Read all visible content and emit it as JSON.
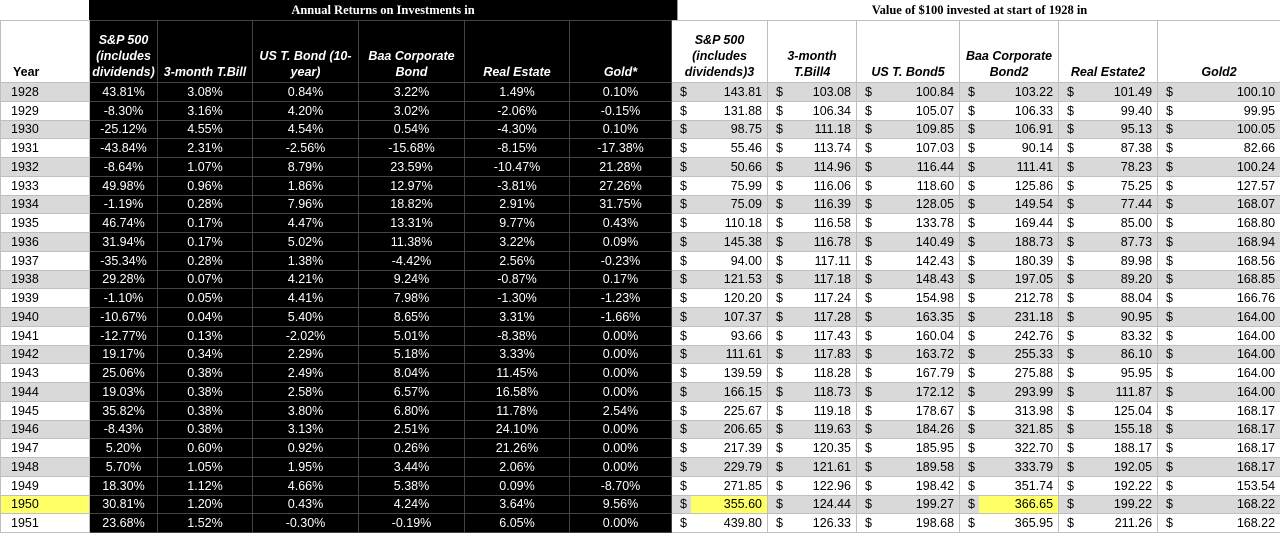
{
  "headers": {
    "left_title": "Annual Returns on Investments in",
    "right_title": "Value of $100 invested at start of 1928 in",
    "year": "Year",
    "returns_cols": [
      "S&P 500 (includes dividends)",
      "3-month T.Bill",
      "US T. Bond (10-year)",
      "Baa Corporate Bond",
      "Real Estate",
      "Gold*"
    ],
    "value_cols": [
      "S&P 500 (includes dividends)3",
      "3-month T.Bill4",
      "US T. Bond5",
      "Baa Corporate Bond2",
      "Real Estate2",
      "Gold2"
    ]
  },
  "currency_symbol": "$",
  "highlight_color": "#ffff66",
  "rows": [
    {
      "year": "1928",
      "r": [
        "43.81%",
        "3.08%",
        "0.84%",
        "3.22%",
        "1.49%",
        "0.10%"
      ],
      "v": [
        "143.81",
        "103.08",
        "100.84",
        "103.22",
        "101.49",
        "100.10"
      ]
    },
    {
      "year": "1929",
      "r": [
        "-8.30%",
        "3.16%",
        "4.20%",
        "3.02%",
        "-2.06%",
        "-0.15%"
      ],
      "v": [
        "131.88",
        "106.34",
        "105.07",
        "106.33",
        "99.40",
        "99.95"
      ]
    },
    {
      "year": "1930",
      "r": [
        "-25.12%",
        "4.55%",
        "4.54%",
        "0.54%",
        "-4.30%",
        "0.10%"
      ],
      "v": [
        "98.75",
        "111.18",
        "109.85",
        "106.91",
        "95.13",
        "100.05"
      ]
    },
    {
      "year": "1931",
      "r": [
        "-43.84%",
        "2.31%",
        "-2.56%",
        "-15.68%",
        "-8.15%",
        "-17.38%"
      ],
      "v": [
        "55.46",
        "113.74",
        "107.03",
        "90.14",
        "87.38",
        "82.66"
      ]
    },
    {
      "year": "1932",
      "r": [
        "-8.64%",
        "1.07%",
        "8.79%",
        "23.59%",
        "-10.47%",
        "21.28%"
      ],
      "v": [
        "50.66",
        "114.96",
        "116.44",
        "111.41",
        "78.23",
        "100.24"
      ]
    },
    {
      "year": "1933",
      "r": [
        "49.98%",
        "0.96%",
        "1.86%",
        "12.97%",
        "-3.81%",
        "27.26%"
      ],
      "v": [
        "75.99",
        "116.06",
        "118.60",
        "125.86",
        "75.25",
        "127.57"
      ]
    },
    {
      "year": "1934",
      "r": [
        "-1.19%",
        "0.28%",
        "7.96%",
        "18.82%",
        "2.91%",
        "31.75%"
      ],
      "v": [
        "75.09",
        "116.39",
        "128.05",
        "149.54",
        "77.44",
        "168.07"
      ]
    },
    {
      "year": "1935",
      "r": [
        "46.74%",
        "0.17%",
        "4.47%",
        "13.31%",
        "9.77%",
        "0.43%"
      ],
      "v": [
        "110.18",
        "116.58",
        "133.78",
        "169.44",
        "85.00",
        "168.80"
      ]
    },
    {
      "year": "1936",
      "r": [
        "31.94%",
        "0.17%",
        "5.02%",
        "11.38%",
        "3.22%",
        "0.09%"
      ],
      "v": [
        "145.38",
        "116.78",
        "140.49",
        "188.73",
        "87.73",
        "168.94"
      ]
    },
    {
      "year": "1937",
      "r": [
        "-35.34%",
        "0.28%",
        "1.38%",
        "-4.42%",
        "2.56%",
        "-0.23%"
      ],
      "v": [
        "94.00",
        "117.11",
        "142.43",
        "180.39",
        "89.98",
        "168.56"
      ]
    },
    {
      "year": "1938",
      "r": [
        "29.28%",
        "0.07%",
        "4.21%",
        "9.24%",
        "-0.87%",
        "0.17%"
      ],
      "v": [
        "121.53",
        "117.18",
        "148.43",
        "197.05",
        "89.20",
        "168.85"
      ]
    },
    {
      "year": "1939",
      "r": [
        "-1.10%",
        "0.05%",
        "4.41%",
        "7.98%",
        "-1.30%",
        "-1.23%"
      ],
      "v": [
        "120.20",
        "117.24",
        "154.98",
        "212.78",
        "88.04",
        "166.76"
      ]
    },
    {
      "year": "1940",
      "r": [
        "-10.67%",
        "0.04%",
        "5.40%",
        "8.65%",
        "3.31%",
        "-1.66%"
      ],
      "v": [
        "107.37",
        "117.28",
        "163.35",
        "231.18",
        "90.95",
        "164.00"
      ]
    },
    {
      "year": "1941",
      "r": [
        "-12.77%",
        "0.13%",
        "-2.02%",
        "5.01%",
        "-8.38%",
        "0.00%"
      ],
      "v": [
        "93.66",
        "117.43",
        "160.04",
        "242.76",
        "83.32",
        "164.00"
      ]
    },
    {
      "year": "1942",
      "r": [
        "19.17%",
        "0.34%",
        "2.29%",
        "5.18%",
        "3.33%",
        "0.00%"
      ],
      "v": [
        "111.61",
        "117.83",
        "163.72",
        "255.33",
        "86.10",
        "164.00"
      ]
    },
    {
      "year": "1943",
      "r": [
        "25.06%",
        "0.38%",
        "2.49%",
        "8.04%",
        "11.45%",
        "0.00%"
      ],
      "v": [
        "139.59",
        "118.28",
        "167.79",
        "275.88",
        "95.95",
        "164.00"
      ]
    },
    {
      "year": "1944",
      "r": [
        "19.03%",
        "0.38%",
        "2.58%",
        "6.57%",
        "16.58%",
        "0.00%"
      ],
      "v": [
        "166.15",
        "118.73",
        "172.12",
        "293.99",
        "111.87",
        "164.00"
      ]
    },
    {
      "year": "1945",
      "r": [
        "35.82%",
        "0.38%",
        "3.80%",
        "6.80%",
        "11.78%",
        "2.54%"
      ],
      "v": [
        "225.67",
        "119.18",
        "178.67",
        "313.98",
        "125.04",
        "168.17"
      ]
    },
    {
      "year": "1946",
      "r": [
        "-8.43%",
        "0.38%",
        "3.13%",
        "2.51%",
        "24.10%",
        "0.00%"
      ],
      "v": [
        "206.65",
        "119.63",
        "184.26",
        "321.85",
        "155.18",
        "168.17"
      ]
    },
    {
      "year": "1947",
      "r": [
        "5.20%",
        "0.60%",
        "0.92%",
        "0.26%",
        "21.26%",
        "0.00%"
      ],
      "v": [
        "217.39",
        "120.35",
        "185.95",
        "322.70",
        "188.17",
        "168.17"
      ]
    },
    {
      "year": "1948",
      "r": [
        "5.70%",
        "1.05%",
        "1.95%",
        "3.44%",
        "2.06%",
        "0.00%"
      ],
      "v": [
        "229.79",
        "121.61",
        "189.58",
        "333.79",
        "192.05",
        "168.17"
      ]
    },
    {
      "year": "1949",
      "r": [
        "18.30%",
        "1.12%",
        "4.66%",
        "5.38%",
        "0.09%",
        "-8.70%"
      ],
      "v": [
        "271.85",
        "122.96",
        "198.42",
        "351.74",
        "192.22",
        "153.54"
      ]
    },
    {
      "year": "1950",
      "r": [
        "30.81%",
        "1.20%",
        "0.43%",
        "4.24%",
        "3.64%",
        "9.56%"
      ],
      "v": [
        "355.60",
        "124.44",
        "199.27",
        "366.65",
        "199.22",
        "168.22"
      ],
      "hl_year": true,
      "hl_v": [
        0,
        3
      ]
    },
    {
      "year": "1951",
      "r": [
        "23.68%",
        "1.52%",
        "-0.30%",
        "-0.19%",
        "6.05%",
        "0.00%"
      ],
      "v": [
        "439.80",
        "126.33",
        "198.68",
        "365.95",
        "211.26",
        "168.22"
      ]
    }
  ]
}
